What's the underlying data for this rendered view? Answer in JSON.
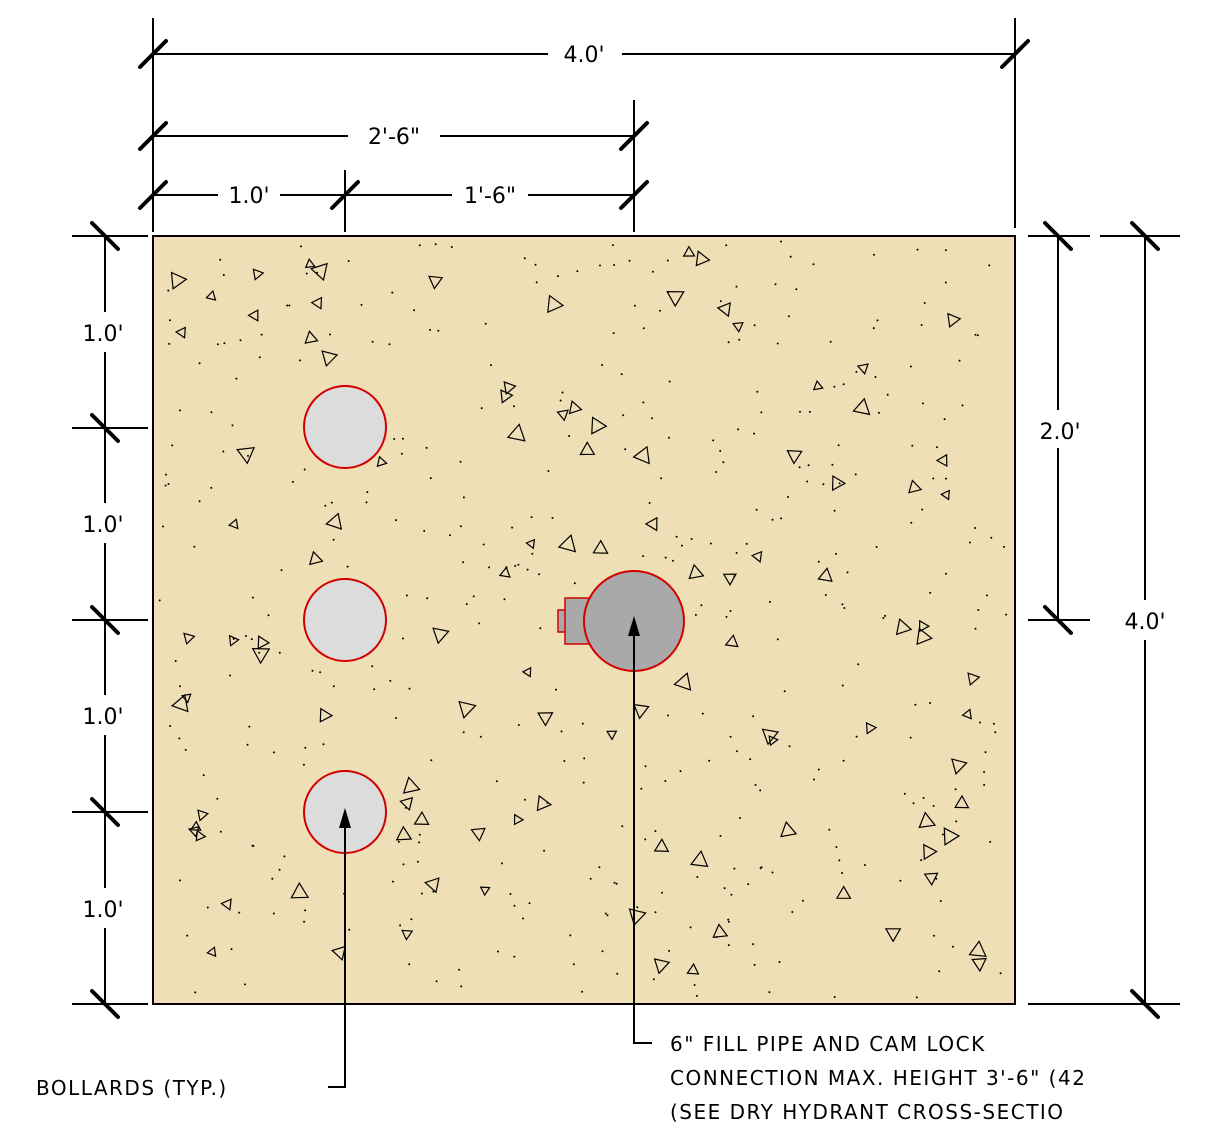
{
  "dimensions": {
    "top_overall": "4.0'",
    "top_mid": "2'-6\"",
    "top_left_segment": "1.0'",
    "top_right_segment": "1'-6\"",
    "left_1": "1.0'",
    "left_2": "1.0'",
    "left_3": "1.0'",
    "left_4": "1.0'",
    "right_upper": "2.0'",
    "right_overall": "4.0'"
  },
  "notes": {
    "bollards": "BOLLARDS (TYP.)",
    "fill_pipe_line1": "6\" FILL PIPE AND CAM LOCK",
    "fill_pipe_line2": "CONNECTION MAX. HEIGHT 3'-6\" (42",
    "fill_pipe_line3": "(SEE DRY HYDRANT CROSS-SECTIO"
  },
  "colors": {
    "concrete_fill": "#efdfb6",
    "bollard_fill": "#dcdcdc",
    "pipe_fill": "#a9a9a9",
    "outline_red": "#d40000",
    "line": "#000000"
  }
}
